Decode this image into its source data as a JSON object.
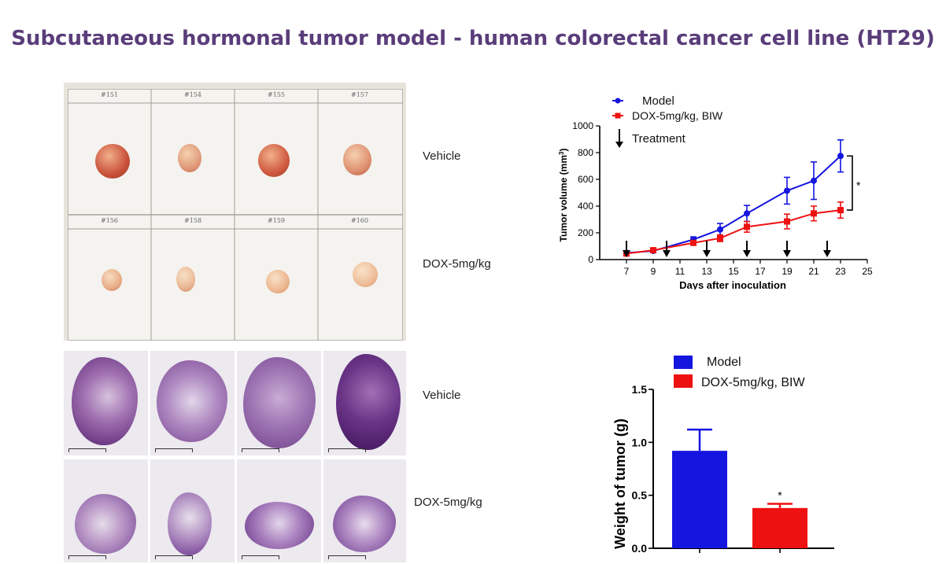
{
  "title": "Subcutaneous hormonal tumor model - human colorectal cancer cell line (HT29)",
  "photo_panel": {
    "vehicle_ids": [
      "#151",
      "#154",
      "#155",
      "#157"
    ],
    "dox_ids": [
      "#156",
      "#158",
      "#159",
      "#160"
    ]
  },
  "labels": {
    "photo_vehicle": "Vehicle",
    "photo_dox": "DOX-5mg/kg",
    "histo_vehicle": "Vehicle",
    "histo_dox": "DOX-5mg/kg"
  },
  "colors": {
    "model": "#1515e0",
    "dox": "#ee1111",
    "title": "#5a3d7a"
  },
  "chart_data": [
    {
      "type": "line",
      "xlabel": "Days after inoculation",
      "ylabel": "Tumor volume (mm3)",
      "xlim": [
        5,
        25
      ],
      "ylim": [
        0,
        1000
      ],
      "xticks": [
        7,
        9,
        11,
        13,
        15,
        17,
        19,
        21,
        23,
        25
      ],
      "yticks": [
        0,
        200,
        400,
        600,
        800,
        1000
      ],
      "series": [
        {
          "name": "Model",
          "x": [
            7,
            9,
            12,
            14,
            16,
            19,
            21,
            23
          ],
          "y": [
            50,
            65,
            150,
            225,
            345,
            515,
            590,
            775
          ],
          "err": [
            10,
            10,
            20,
            45,
            60,
            100,
            140,
            120
          ]
        },
        {
          "name": "DOX-5mg/kg, BIW",
          "x": [
            7,
            9,
            12,
            14,
            16,
            19,
            21,
            23
          ],
          "y": [
            45,
            70,
            125,
            160,
            245,
            285,
            345,
            370
          ],
          "err": [
            10,
            12,
            15,
            25,
            40,
            55,
            55,
            60
          ]
        }
      ],
      "treatment_label": "Treatment",
      "treatment_days": [
        7,
        10,
        13,
        16,
        19,
        22
      ],
      "significance": "*"
    },
    {
      "type": "bar",
      "ylabel": "Weight of tumor (g)",
      "ylim": [
        0,
        1.5
      ],
      "yticks": [
        "0.0",
        "0.5",
        "1.0",
        "1.5"
      ],
      "categories": [
        "Model",
        "DOX-5mg/kg, BIW"
      ],
      "values": [
        0.92,
        0.38
      ],
      "err": [
        0.2,
        0.04
      ],
      "significance": [
        "",
        "*"
      ]
    }
  ]
}
